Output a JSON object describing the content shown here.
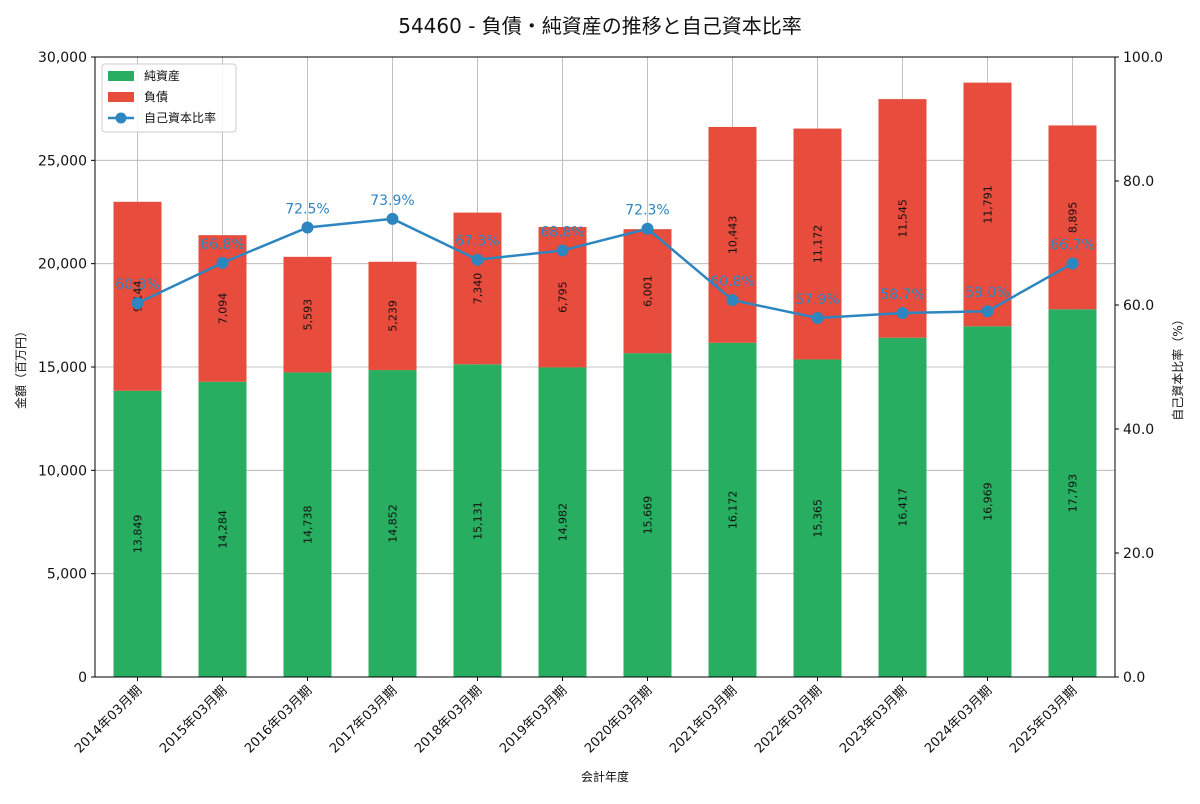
{
  "chart_data": {
    "type": "bar",
    "title": "54460 - 負債・純資産の推移と自己資本比率",
    "xlabel": "会計年度",
    "ylabel": "金額（百万円）",
    "y2label": "自己資本比率（%）",
    "ylim": [
      0,
      30000
    ],
    "y2lim": [
      0,
      100
    ],
    "yticks": [
      "0",
      "5,000",
      "10,000",
      "15,000",
      "20,000",
      "25,000",
      "30,000"
    ],
    "y2ticks": [
      "0.0",
      "20.0",
      "40.0",
      "60.0",
      "80.0",
      "100.0"
    ],
    "grid": true,
    "stacked": true,
    "legend_position": "top-left",
    "categories": [
      "2014年03月期",
      "2015年03月期",
      "2016年03月期",
      "2017年03月期",
      "2018年03月期",
      "2019年03月期",
      "2020年03月期",
      "2021年03月期",
      "2022年03月期",
      "2023年03月期",
      "2024年03月期",
      "2025年03月期"
    ],
    "series": [
      {
        "name": "純資産",
        "type": "bar",
        "axis": "left",
        "color": "#27ae60",
        "values": [
          13849,
          14284,
          14738,
          14852,
          15131,
          14982,
          15669,
          16172,
          15365,
          16417,
          16969,
          17793
        ],
        "labels": [
          "13,849",
          "14,284",
          "14,738",
          "14,852",
          "15,131",
          "14,982",
          "15,669",
          "16,172",
          "15,365",
          "16,417",
          "16,969",
          "17,793"
        ]
      },
      {
        "name": "負債",
        "type": "bar",
        "axis": "left",
        "color": "#e74c3c",
        "values": [
          9144,
          7094,
          5593,
          5239,
          7340,
          6795,
          6001,
          10443,
          11172,
          11545,
          11791,
          8895
        ],
        "labels": [
          "9,144",
          "7,094",
          "5,593",
          "5,239",
          "7,340",
          "6,795",
          "6,001",
          "10,443",
          "11,172",
          "11,545",
          "11,791",
          "8,895"
        ]
      },
      {
        "name": "自己資本比率",
        "type": "line",
        "axis": "right",
        "color": "#2e86c1",
        "values": [
          60.3,
          66.8,
          72.5,
          73.9,
          67.3,
          68.8,
          72.3,
          60.8,
          57.9,
          58.7,
          59.0,
          66.7
        ],
        "labels": [
          "60.3%",
          "66.8%",
          "72.5%",
          "73.9%",
          "67.3%",
          "68.8%",
          "72.3%",
          "60.8%",
          "57.9%",
          "58.7%",
          "59.0%",
          "66.7%"
        ]
      }
    ]
  }
}
